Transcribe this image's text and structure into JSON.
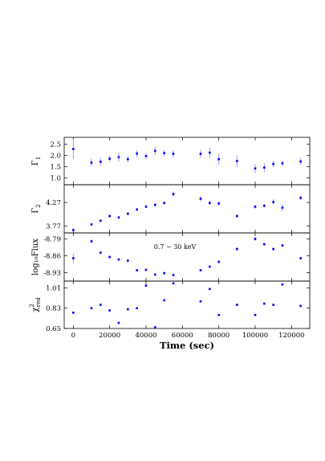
{
  "chart_data": [
    {
      "type": "scatter",
      "ylabel": "Γ",
      "ylabel_sub": "1",
      "ylim": [
        0.7,
        2.8
      ],
      "yticks": [
        1.0,
        1.5,
        2.0,
        2.5
      ],
      "ytick_labels": [
        "1.0",
        "1.5",
        "2.0",
        "2.5"
      ],
      "annotation": "",
      "marker_color": "#0000ff",
      "errorbar_color": "#8f8fff",
      "series": [
        {
          "x": [
            0,
            10000,
            15000,
            20000,
            25000,
            30000,
            35000,
            40000,
            45000,
            50000,
            55000,
            70000,
            75000,
            80000,
            90000,
            100000,
            105000,
            110000,
            115000,
            125000
          ],
          "y": [
            2.28,
            1.68,
            1.72,
            1.85,
            1.92,
            1.83,
            2.08,
            1.97,
            2.2,
            2.1,
            2.07,
            2.07,
            2.12,
            1.83,
            1.75,
            1.42,
            1.46,
            1.62,
            1.65,
            1.73
          ],
          "err": [
            0.45,
            0.18,
            0.18,
            0.15,
            0.2,
            0.15,
            0.15,
            0.15,
            0.18,
            0.15,
            0.15,
            0.18,
            0.22,
            0.25,
            0.25,
            0.2,
            0.2,
            0.15,
            0.12,
            0.15
          ]
        }
      ]
    },
    {
      "type": "scatter",
      "ylabel": "Γ",
      "ylabel_sub": "2",
      "ylim": [
        3.62,
        4.65
      ],
      "yticks": [
        3.77,
        4.27
      ],
      "ytick_labels": [
        "3.77",
        "4.27"
      ],
      "annotation": "",
      "marker_color": "#0000ff",
      "errorbar_color": "#8f8fff",
      "series": [
        {
          "x": [
            0,
            10000,
            15000,
            20000,
            25000,
            30000,
            35000,
            40000,
            45000,
            50000,
            55000,
            70000,
            75000,
            80000,
            90000,
            100000,
            105000,
            110000,
            115000,
            125000
          ],
          "y": [
            3.68,
            3.8,
            3.88,
            3.98,
            3.95,
            4.03,
            4.12,
            4.18,
            4.22,
            4.26,
            4.45,
            4.35,
            4.26,
            4.25,
            3.98,
            4.18,
            4.2,
            4.28,
            4.16,
            4.37
          ],
          "err": [
            0.04,
            0.03,
            0.03,
            0.03,
            0.03,
            0.03,
            0.03,
            0.03,
            0.04,
            0.04,
            0.06,
            0.06,
            0.05,
            0.05,
            0.04,
            0.04,
            0.04,
            0.06,
            0.08,
            0.05
          ]
        }
      ]
    },
    {
      "type": "scatter",
      "ylabel": "log₁₀Flux",
      "ylabel_sub": "",
      "ylim": [
        -8.965,
        -8.765
      ],
      "yticks": [
        -8.93,
        -8.86,
        -8.79
      ],
      "ytick_labels": [
        "-8.93",
        "-8.86",
        "-8.79"
      ],
      "annotation": "0.7 − 30 keV",
      "marker_color": "#0000ff",
      "errorbar_color": "#8f8fff",
      "series": [
        {
          "x": [
            0,
            10000,
            15000,
            20000,
            25000,
            30000,
            35000,
            40000,
            45000,
            50000,
            55000,
            70000,
            75000,
            80000,
            90000,
            100000,
            105000,
            110000,
            115000,
            125000
          ],
          "y": [
            -8.87,
            -8.8,
            -8.847,
            -8.865,
            -8.875,
            -8.88,
            -8.92,
            -8.918,
            -8.938,
            -8.932,
            -8.94,
            -8.92,
            -8.905,
            -8.885,
            -8.832,
            -8.79,
            -8.812,
            -8.832,
            -8.817,
            -8.87
          ],
          "err": [
            0.02,
            0.008,
            0.006,
            0.006,
            0.005,
            0.005,
            0.005,
            0.005,
            0.005,
            0.005,
            0.006,
            0.005,
            0.005,
            0.006,
            0.008,
            0.008,
            0.006,
            0.006,
            0.006,
            0.006
          ]
        }
      ]
    },
    {
      "type": "scatter",
      "ylabel": "χ",
      "ylabel_sub": "red",
      "ylabel_sup": "2",
      "ylim": [
        0.65,
        1.07
      ],
      "yticks": [
        0.65,
        0.83,
        1.01
      ],
      "ytick_labels": [
        "0.65",
        "0.83",
        "1.01"
      ],
      "annotation": "",
      "marker_color": "#0000ff",
      "errorbar_color": "#8f8fff",
      "series": [
        {
          "x": [
            0,
            10000,
            15000,
            20000,
            25000,
            30000,
            35000,
            40000,
            45000,
            50000,
            55000,
            70000,
            75000,
            80000,
            90000,
            100000,
            105000,
            110000,
            115000,
            125000
          ],
          "y": [
            0.79,
            0.83,
            0.86,
            0.81,
            0.7,
            0.82,
            0.83,
            1.03,
            0.66,
            0.9,
            1.05,
            0.89,
            1.0,
            0.77,
            0.86,
            0.77,
            0.87,
            0.86,
            1.04,
            0.85
          ],
          "err": []
        }
      ]
    }
  ],
  "xaxis": {
    "label": "Time (sec)",
    "xlim": [
      -5000,
      130000
    ],
    "ticks": [
      0,
      20000,
      40000,
      60000,
      80000,
      100000,
      120000
    ],
    "tick_labels": [
      "0",
      "20000",
      "40000",
      "60000",
      "80000",
      "100000",
      "120000"
    ]
  }
}
